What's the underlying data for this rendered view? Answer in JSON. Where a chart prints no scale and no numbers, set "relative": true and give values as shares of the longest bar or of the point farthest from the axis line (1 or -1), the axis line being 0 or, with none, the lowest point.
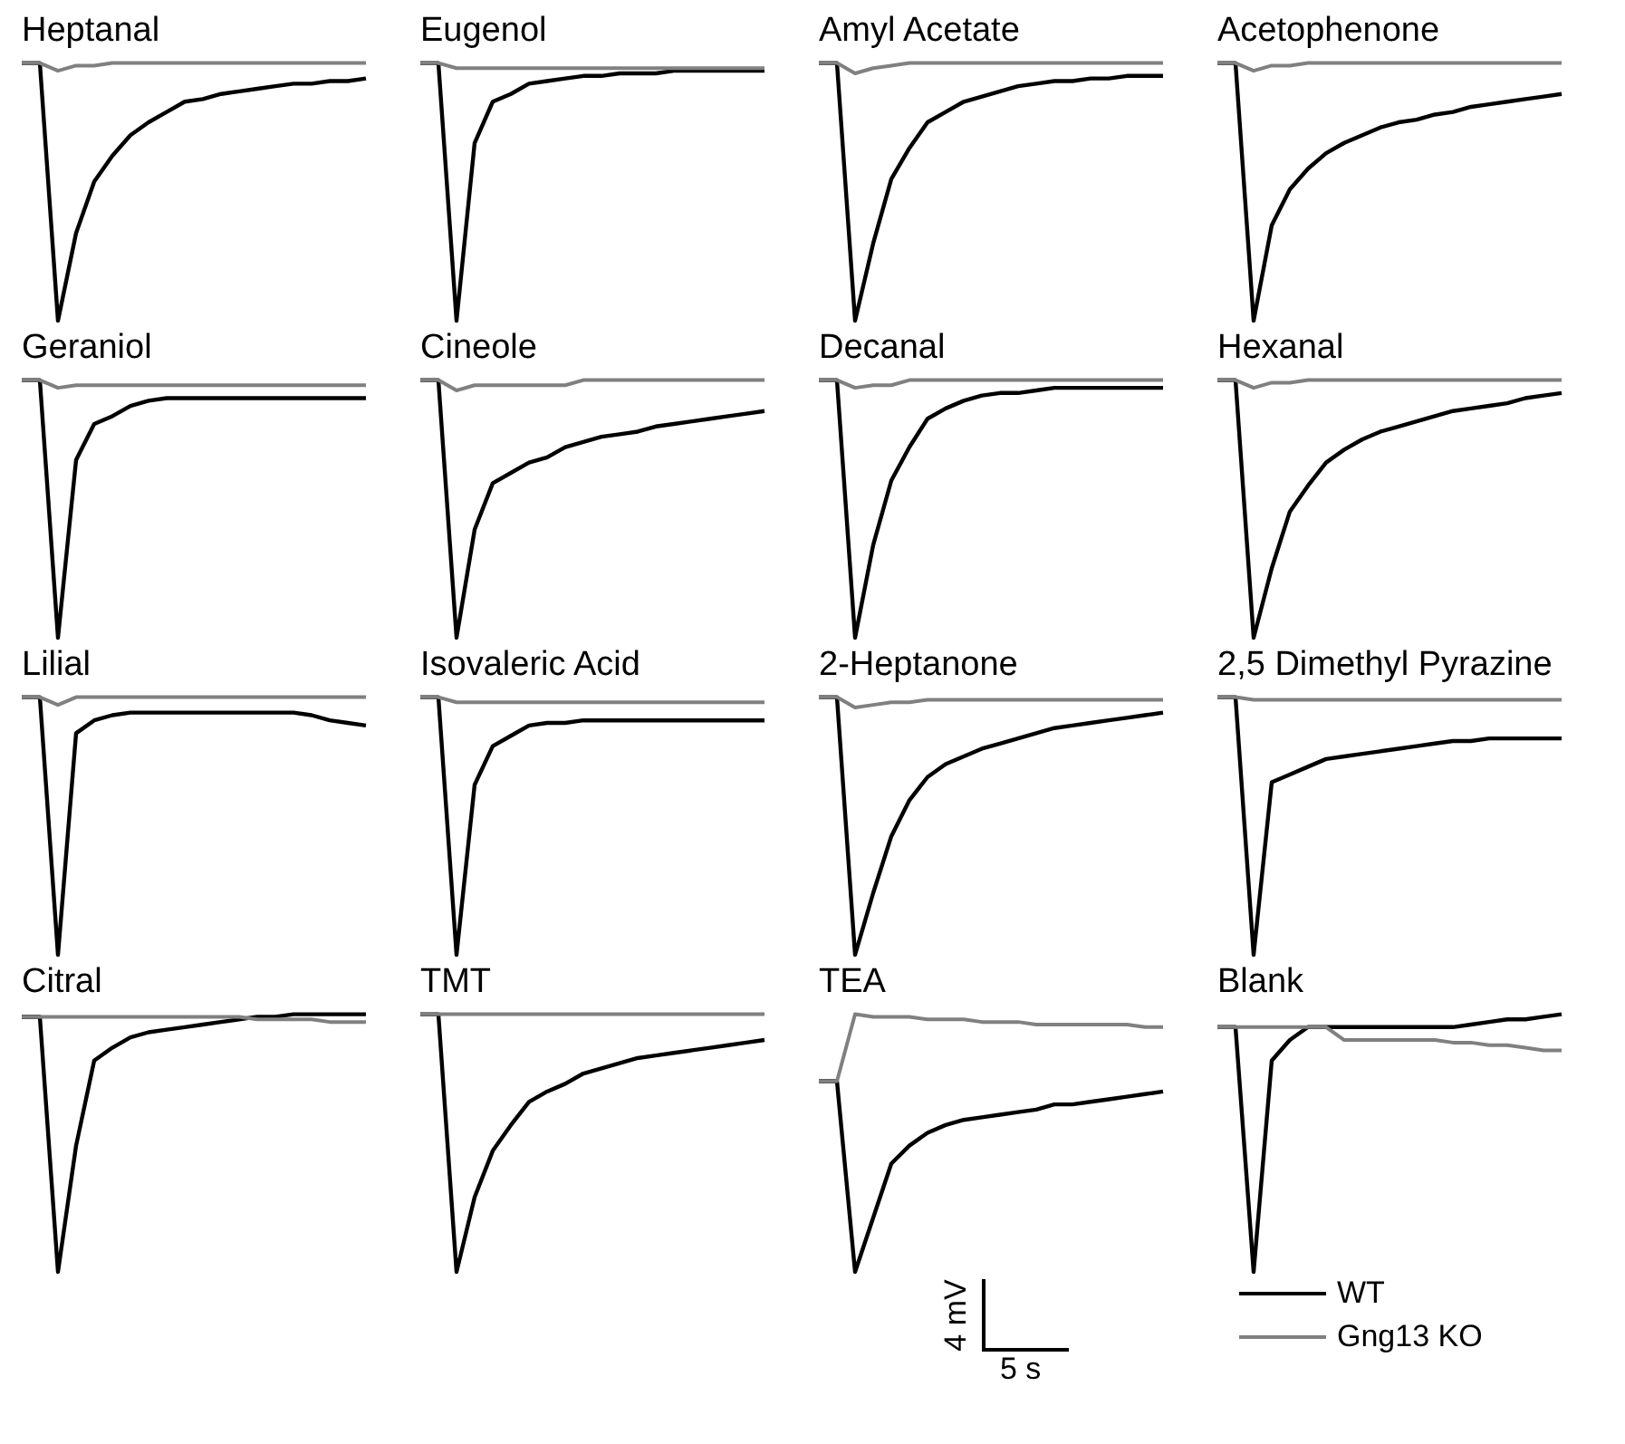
{
  "chart_data": [
    {
      "type": "line",
      "title": "Heptanal",
      "relative": true,
      "categories": [
        null,
        null,
        null,
        null,
        null,
        null,
        null,
        null,
        null,
        null,
        null,
        null,
        null,
        null,
        null,
        null,
        null,
        null,
        null,
        null
      ],
      "tick_labels": false,
      "marker": "none",
      "series": [
        {
          "color": "#000000",
          "values": [
            1,
            1,
            0,
            0.34,
            0.54,
            0.64,
            0.72,
            0.77,
            0.81,
            0.85,
            0.86,
            0.88,
            0.89,
            0.9,
            0.91,
            0.92,
            0.92,
            0.93,
            0.93,
            0.94
          ]
        },
        {
          "color": "#808080",
          "values": [
            1,
            1,
            0.97,
            0.99,
            0.99,
            1,
            1,
            1,
            1,
            1,
            1,
            1,
            1,
            1,
            1,
            1,
            1,
            1,
            1,
            1
          ]
        }
      ]
    },
    {
      "type": "line",
      "title": "Eugenol",
      "relative": true,
      "categories": [
        null,
        null,
        null,
        null,
        null,
        null,
        null,
        null,
        null,
        null,
        null,
        null,
        null,
        null,
        null,
        null,
        null,
        null,
        null,
        null
      ],
      "tick_labels": false,
      "marker": "none",
      "series": [
        {
          "color": "#000000",
          "values": [
            1,
            1,
            0,
            0.69,
            0.85,
            0.88,
            0.92,
            0.93,
            0.94,
            0.95,
            0.95,
            0.96,
            0.96,
            0.96,
            0.97,
            0.97,
            0.97,
            0.97,
            0.97,
            0.97
          ]
        },
        {
          "color": "#808080",
          "values": [
            1,
            1,
            0.98,
            0.98,
            0.98,
            0.98,
            0.98,
            0.98,
            0.98,
            0.98,
            0.98,
            0.98,
            0.98,
            0.98,
            0.98,
            0.98,
            0.98,
            0.98,
            0.98,
            0.98
          ]
        }
      ]
    },
    {
      "type": "line",
      "title": "Amyl Acetate",
      "relative": true,
      "categories": [
        null,
        null,
        null,
        null,
        null,
        null,
        null,
        null,
        null,
        null,
        null,
        null,
        null,
        null,
        null,
        null,
        null,
        null,
        null,
        null
      ],
      "tick_labels": false,
      "marker": "none",
      "series": [
        {
          "color": "#000000",
          "values": [
            1,
            1,
            0,
            0.3,
            0.55,
            0.67,
            0.77,
            0.81,
            0.85,
            0.87,
            0.89,
            0.91,
            0.92,
            0.93,
            0.93,
            0.94,
            0.94,
            0.95,
            0.95,
            0.95
          ]
        },
        {
          "color": "#808080",
          "values": [
            1,
            1,
            0.96,
            0.98,
            0.99,
            1,
            1,
            1,
            1,
            1,
            1,
            1,
            1,
            1,
            1,
            1,
            1,
            1,
            1,
            1
          ]
        }
      ]
    },
    {
      "type": "line",
      "title": "Acetophenone",
      "relative": true,
      "categories": [
        null,
        null,
        null,
        null,
        null,
        null,
        null,
        null,
        null,
        null,
        null,
        null,
        null,
        null,
        null,
        null,
        null,
        null,
        null,
        null
      ],
      "tick_labels": false,
      "marker": "none",
      "series": [
        {
          "color": "#000000",
          "values": [
            1,
            1,
            0,
            0.37,
            0.51,
            0.59,
            0.65,
            0.69,
            0.72,
            0.75,
            0.77,
            0.78,
            0.8,
            0.81,
            0.83,
            0.84,
            0.85,
            0.86,
            0.87,
            0.88
          ]
        },
        {
          "color": "#808080",
          "values": [
            1,
            1,
            0.97,
            0.99,
            0.99,
            1,
            1,
            1,
            1,
            1,
            1,
            1,
            1,
            1,
            1,
            1,
            1,
            1,
            1,
            1
          ]
        }
      ]
    },
    {
      "type": "line",
      "title": "Geraniol",
      "relative": true,
      "categories": [
        null,
        null,
        null,
        null,
        null,
        null,
        null,
        null,
        null,
        null,
        null,
        null,
        null,
        null,
        null,
        null,
        null,
        null,
        null,
        null
      ],
      "tick_labels": false,
      "marker": "none",
      "series": [
        {
          "color": "#000000",
          "values": [
            1,
            1,
            0,
            0.69,
            0.83,
            0.86,
            0.9,
            0.92,
            0.93,
            0.93,
            0.93,
            0.93,
            0.93,
            0.93,
            0.93,
            0.93,
            0.93,
            0.93,
            0.93,
            0.93
          ]
        },
        {
          "color": "#808080",
          "values": [
            1,
            1,
            0.97,
            0.98,
            0.98,
            0.98,
            0.98,
            0.98,
            0.98,
            0.98,
            0.98,
            0.98,
            0.98,
            0.98,
            0.98,
            0.98,
            0.98,
            0.98,
            0.98,
            0.98
          ]
        }
      ]
    },
    {
      "type": "line",
      "title": "Cineole",
      "relative": true,
      "categories": [
        null,
        null,
        null,
        null,
        null,
        null,
        null,
        null,
        null,
        null,
        null,
        null,
        null,
        null,
        null,
        null,
        null,
        null,
        null,
        null
      ],
      "tick_labels": false,
      "marker": "none",
      "series": [
        {
          "color": "#000000",
          "values": [
            1,
            1,
            0,
            0.42,
            0.6,
            0.64,
            0.68,
            0.7,
            0.74,
            0.76,
            0.78,
            0.79,
            0.8,
            0.82,
            0.83,
            0.84,
            0.85,
            0.86,
            0.87,
            0.88
          ]
        },
        {
          "color": "#808080",
          "values": [
            1,
            1,
            0.96,
            0.98,
            0.98,
            0.98,
            0.98,
            0.98,
            0.98,
            1,
            1,
            1,
            1,
            1,
            1,
            1,
            1,
            1,
            1,
            1
          ]
        }
      ]
    },
    {
      "type": "line",
      "title": "Decanal",
      "relative": true,
      "categories": [
        null,
        null,
        null,
        null,
        null,
        null,
        null,
        null,
        null,
        null,
        null,
        null,
        null,
        null,
        null,
        null,
        null,
        null,
        null,
        null
      ],
      "tick_labels": false,
      "marker": "none",
      "series": [
        {
          "color": "#000000",
          "values": [
            1,
            1,
            0,
            0.36,
            0.61,
            0.74,
            0.85,
            0.89,
            0.92,
            0.94,
            0.95,
            0.95,
            0.96,
            0.97,
            0.97,
            0.97,
            0.97,
            0.97,
            0.97,
            0.97
          ]
        },
        {
          "color": "#808080",
          "values": [
            1,
            1,
            0.97,
            0.98,
            0.98,
            1,
            1,
            1,
            1,
            1,
            1,
            1,
            1,
            1,
            1,
            1,
            1,
            1,
            1,
            1
          ]
        }
      ]
    },
    {
      "type": "line",
      "title": "Hexanal",
      "relative": true,
      "categories": [
        null,
        null,
        null,
        null,
        null,
        null,
        null,
        null,
        null,
        null,
        null,
        null,
        null,
        null,
        null,
        null,
        null,
        null,
        null,
        null
      ],
      "tick_labels": false,
      "marker": "none",
      "series": [
        {
          "color": "#000000",
          "values": [
            1,
            1,
            0,
            0.27,
            0.49,
            0.59,
            0.68,
            0.73,
            0.77,
            0.8,
            0.82,
            0.84,
            0.86,
            0.88,
            0.89,
            0.9,
            0.91,
            0.93,
            0.94,
            0.95
          ]
        },
        {
          "color": "#808080",
          "values": [
            1,
            1,
            0.97,
            0.99,
            0.99,
            1,
            1,
            1,
            1,
            1,
            1,
            1,
            1,
            1,
            1,
            1,
            1,
            1,
            1,
            1
          ]
        }
      ]
    },
    {
      "type": "line",
      "title": "Lilial",
      "relative": true,
      "categories": [
        null,
        null,
        null,
        null,
        null,
        null,
        null,
        null,
        null,
        null,
        null,
        null,
        null,
        null,
        null,
        null,
        null,
        null,
        null,
        null
      ],
      "tick_labels": false,
      "marker": "none",
      "series": [
        {
          "color": "#000000",
          "values": [
            1,
            1,
            0,
            0.86,
            0.91,
            0.93,
            0.94,
            0.94,
            0.94,
            0.94,
            0.94,
            0.94,
            0.94,
            0.94,
            0.94,
            0.94,
            0.93,
            0.91,
            0.9,
            0.89
          ]
        },
        {
          "color": "#808080",
          "values": [
            1,
            1,
            0.97,
            1,
            1,
            1,
            1,
            1,
            1,
            1,
            1,
            1,
            1,
            1,
            1,
            1,
            1,
            1,
            1,
            1
          ]
        }
      ]
    },
    {
      "type": "line",
      "title": "Isovaleric Acid",
      "relative": true,
      "categories": [
        null,
        null,
        null,
        null,
        null,
        null,
        null,
        null,
        null,
        null,
        null,
        null,
        null,
        null,
        null,
        null,
        null,
        null,
        null,
        null
      ],
      "tick_labels": false,
      "marker": "none",
      "series": [
        {
          "color": "#000000",
          "values": [
            1,
            1,
            0,
            0.66,
            0.81,
            0.85,
            0.89,
            0.9,
            0.9,
            0.91,
            0.91,
            0.91,
            0.91,
            0.91,
            0.91,
            0.91,
            0.91,
            0.91,
            0.91,
            0.91
          ]
        },
        {
          "color": "#808080",
          "values": [
            1,
            1,
            0.98,
            0.98,
            0.98,
            0.98,
            0.98,
            0.98,
            0.98,
            0.98,
            0.98,
            0.98,
            0.98,
            0.98,
            0.98,
            0.98,
            0.98,
            0.98,
            0.98,
            0.98
          ]
        }
      ]
    },
    {
      "type": "line",
      "title": "2-Heptanone",
      "relative": true,
      "categories": [
        null,
        null,
        null,
        null,
        null,
        null,
        null,
        null,
        null,
        null,
        null,
        null,
        null,
        null,
        null,
        null,
        null,
        null,
        null,
        null
      ],
      "tick_labels": false,
      "marker": "none",
      "series": [
        {
          "color": "#000000",
          "values": [
            1,
            1,
            0,
            0.24,
            0.46,
            0.6,
            0.69,
            0.74,
            0.77,
            0.8,
            0.82,
            0.84,
            0.86,
            0.88,
            0.89,
            0.9,
            0.91,
            0.92,
            0.93,
            0.94
          ]
        },
        {
          "color": "#808080",
          "values": [
            1,
            1,
            0.96,
            0.97,
            0.98,
            0.98,
            0.99,
            0.99,
            0.99,
            0.99,
            0.99,
            0.99,
            0.99,
            0.99,
            0.99,
            0.99,
            0.99,
            0.99,
            0.99,
            0.99
          ]
        }
      ]
    },
    {
      "type": "line",
      "title": "2,5 Dimethyl Pyrazine",
      "relative": true,
      "categories": [
        null,
        null,
        null,
        null,
        null,
        null,
        null,
        null,
        null,
        null,
        null,
        null,
        null,
        null,
        null,
        null,
        null,
        null,
        null,
        null
      ],
      "tick_labels": false,
      "marker": "none",
      "series": [
        {
          "color": "#000000",
          "values": [
            1,
            1,
            0,
            0.67,
            0.7,
            0.73,
            0.76,
            0.77,
            0.78,
            0.79,
            0.8,
            0.81,
            0.82,
            0.83,
            0.83,
            0.84,
            0.84,
            0.84,
            0.84,
            0.84
          ]
        },
        {
          "color": "#808080",
          "values": [
            1,
            1,
            0.99,
            0.99,
            0.99,
            0.99,
            0.99,
            0.99,
            0.99,
            0.99,
            0.99,
            0.99,
            0.99,
            0.99,
            0.99,
            0.99,
            0.99,
            0.99,
            0.99,
            0.99
          ]
        }
      ]
    },
    {
      "type": "line",
      "title": "Citral",
      "relative": true,
      "categories": [
        null,
        null,
        null,
        null,
        null,
        null,
        null,
        null,
        null,
        null,
        null,
        null,
        null,
        null,
        null,
        null,
        null,
        null,
        null,
        null
      ],
      "tick_labels": false,
      "marker": "none",
      "series": [
        {
          "color": "#000000",
          "values": [
            0.99,
            0.99,
            0,
            0.49,
            0.82,
            0.87,
            0.91,
            0.93,
            0.94,
            0.95,
            0.96,
            0.97,
            0.98,
            0.99,
            0.99,
            1,
            1,
            1,
            1,
            1
          ]
        },
        {
          "color": "#808080",
          "values": [
            0.99,
            0.99,
            0.99,
            0.99,
            0.99,
            0.99,
            0.99,
            0.99,
            0.99,
            0.99,
            0.99,
            0.99,
            0.99,
            0.98,
            0.98,
            0.98,
            0.98,
            0.97,
            0.97,
            0.97
          ]
        }
      ]
    },
    {
      "type": "line",
      "title": "TMT",
      "relative": true,
      "categories": [
        null,
        null,
        null,
        null,
        null,
        null,
        null,
        null,
        null,
        null,
        null,
        null,
        null,
        null,
        null,
        null,
        null,
        null,
        null,
        null
      ],
      "tick_labels": false,
      "marker": "none",
      "series": [
        {
          "color": "#000000",
          "values": [
            1,
            1,
            0,
            0.29,
            0.47,
            0.57,
            0.66,
            0.7,
            0.73,
            0.77,
            0.79,
            0.81,
            0.83,
            0.84,
            0.85,
            0.86,
            0.87,
            0.88,
            0.89,
            0.9
          ]
        },
        {
          "color": "#808080",
          "values": [
            1,
            1,
            1,
            1,
            1,
            1,
            1,
            1,
            1,
            1,
            1,
            1,
            1,
            1,
            1,
            1,
            1,
            1,
            1,
            1
          ]
        }
      ]
    },
    {
      "type": "line",
      "title": "TEA",
      "relative": true,
      "categories": [
        null,
        null,
        null,
        null,
        null,
        null,
        null,
        null,
        null,
        null,
        null,
        null,
        null,
        null,
        null,
        null,
        null,
        null,
        null,
        null
      ],
      "tick_labels": false,
      "marker": "none",
      "annotations": [
        "4 mV",
        "5 s"
      ],
      "series": [
        {
          "color": "#000000",
          "values": [
            0.74,
            0.74,
            0,
            0.21,
            0.42,
            0.49,
            0.54,
            0.57,
            0.59,
            0.6,
            0.61,
            0.62,
            0.63,
            0.65,
            0.65,
            0.66,
            0.67,
            0.68,
            0.69,
            0.7
          ]
        },
        {
          "color": "#808080",
          "values": [
            0.74,
            0.74,
            1,
            0.99,
            0.99,
            0.99,
            0.98,
            0.98,
            0.98,
            0.97,
            0.97,
            0.97,
            0.96,
            0.96,
            0.96,
            0.96,
            0.96,
            0.96,
            0.95,
            0.95
          ]
        }
      ]
    },
    {
      "type": "line",
      "title": "Blank",
      "relative": true,
      "categories": [
        null,
        null,
        null,
        null,
        null,
        null,
        null,
        null,
        null,
        null,
        null,
        null,
        null,
        null,
        null,
        null,
        null,
        null,
        null,
        null
      ],
      "tick_labels": false,
      "marker": "none",
      "legend": "bottom",
      "series": [
        {
          "name": "WT",
          "color": "#000000",
          "values": [
            0.95,
            0.95,
            0,
            0.82,
            0.9,
            0.95,
            0.95,
            0.95,
            0.95,
            0.95,
            0.95,
            0.95,
            0.95,
            0.95,
            0.96,
            0.97,
            0.98,
            0.98,
            0.99,
            1
          ]
        },
        {
          "name": "Gng13 KO",
          "color": "#808080",
          "values": [
            0.95,
            0.95,
            0.95,
            0.95,
            0.95,
            0.95,
            0.95,
            0.9,
            0.9,
            0.9,
            0.9,
            0.9,
            0.9,
            0.89,
            0.89,
            0.88,
            0.88,
            0.87,
            0.86,
            0.86
          ]
        }
      ]
    }
  ]
}
